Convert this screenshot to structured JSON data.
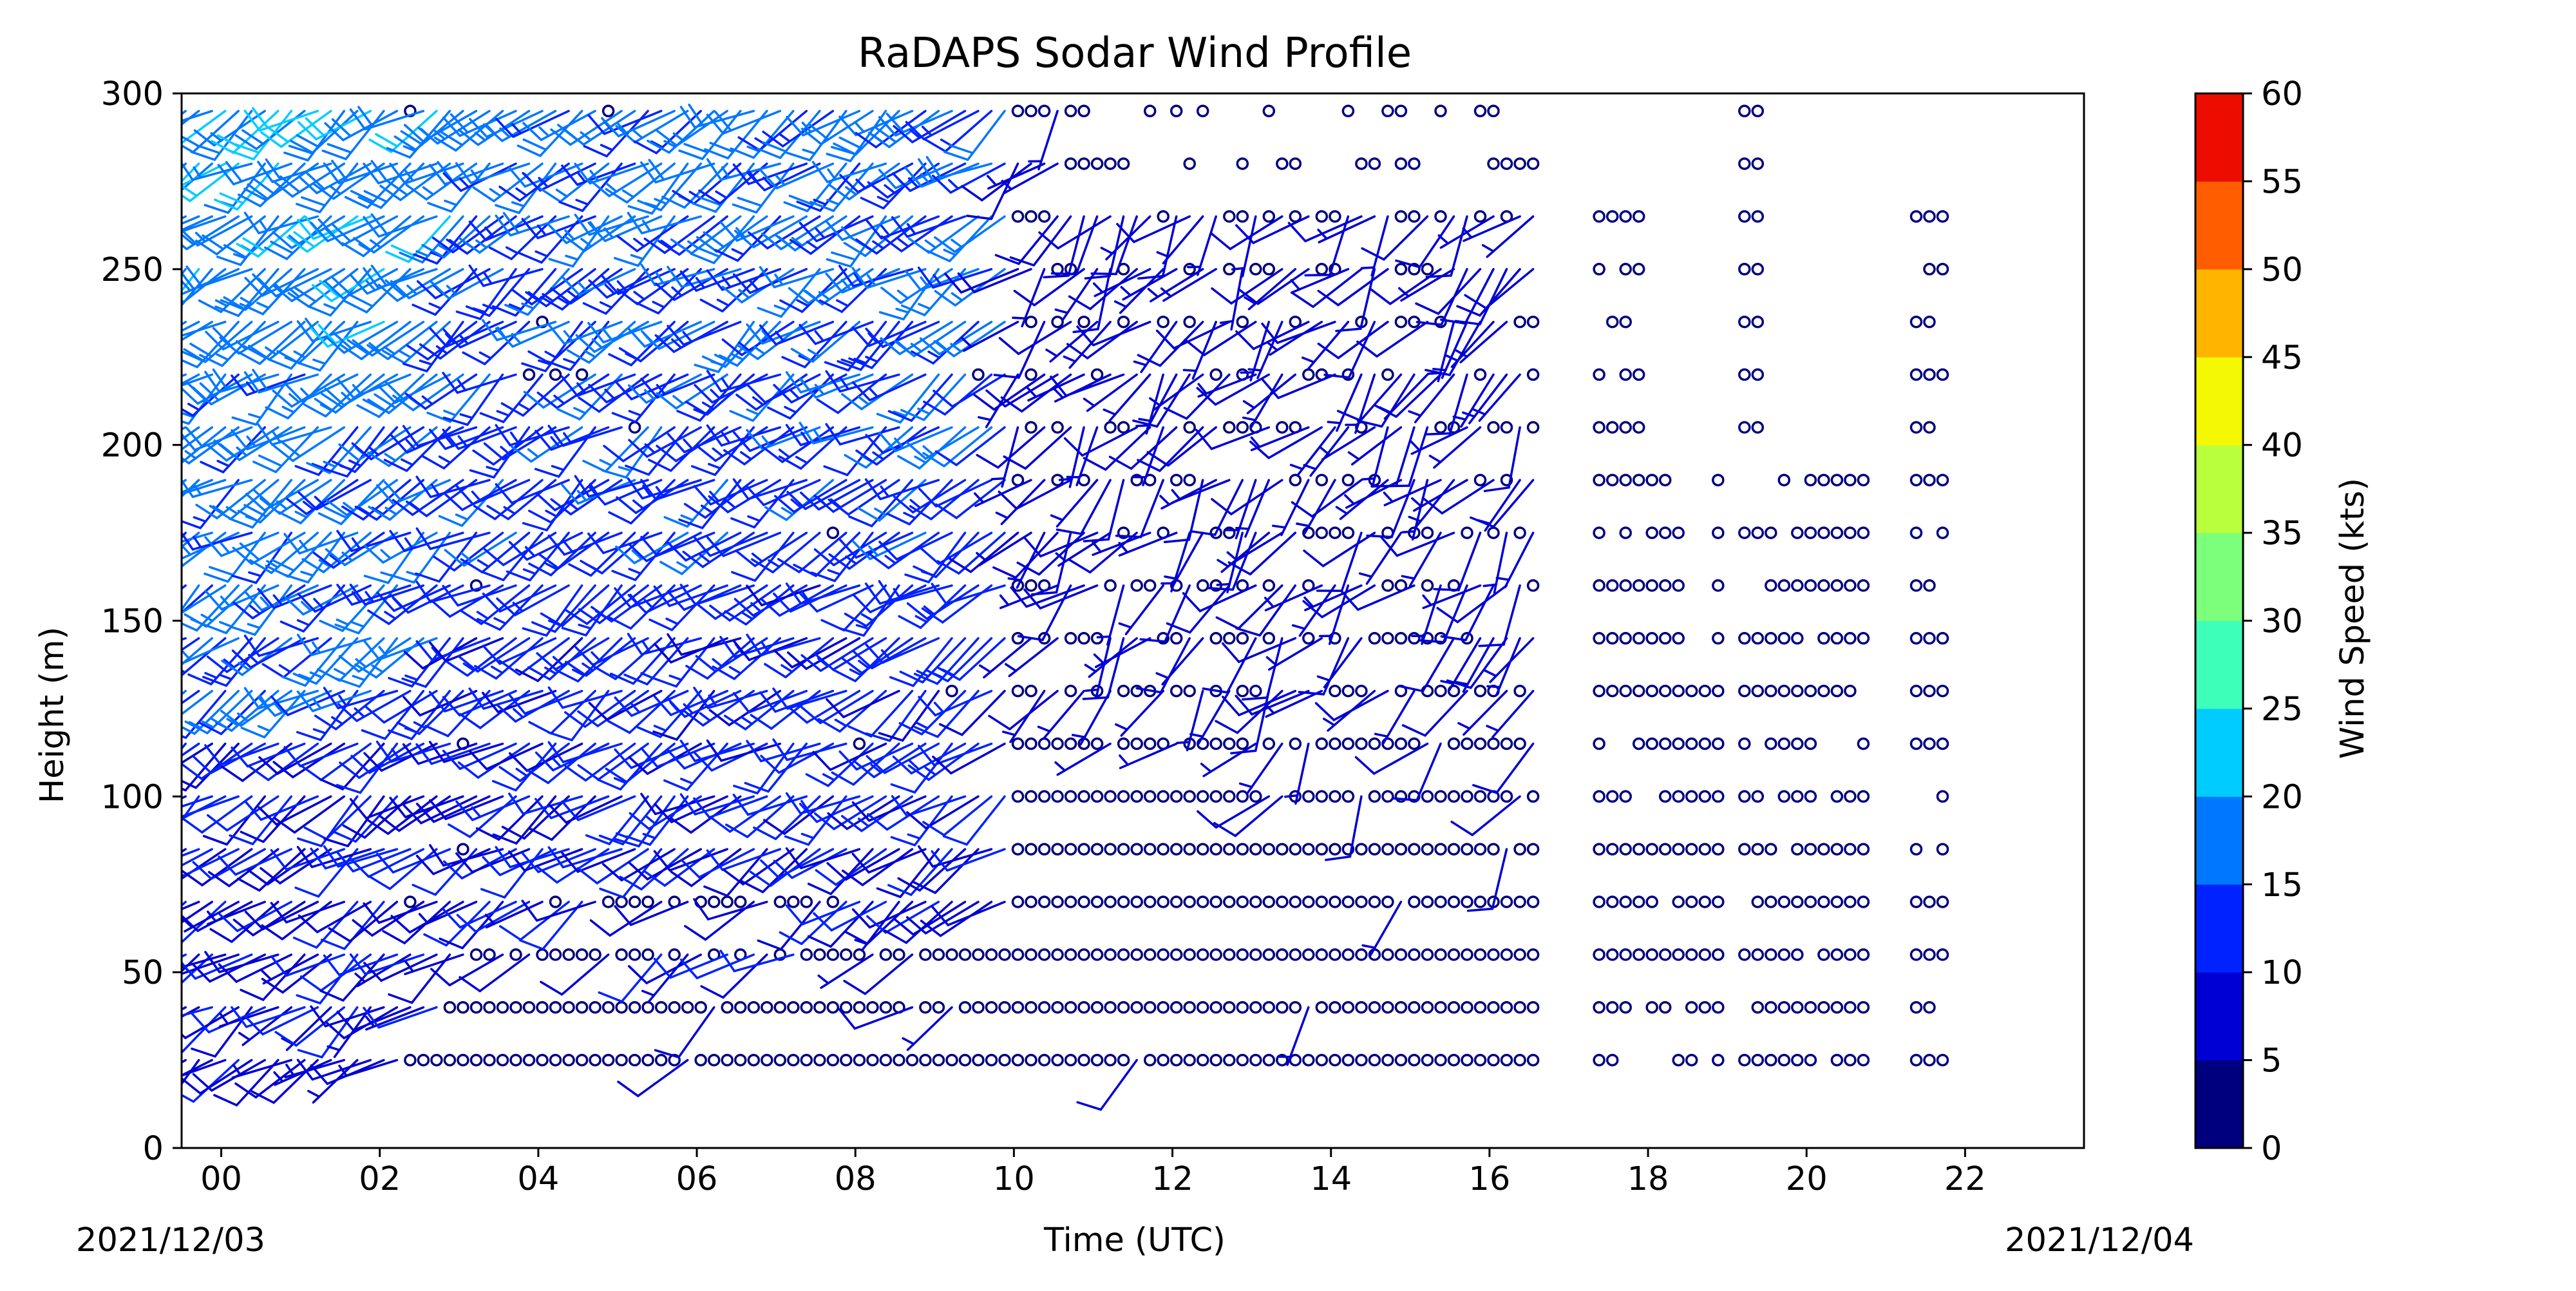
{
  "chart_data": {
    "type": "wind_barbs",
    "title": "RaDAPS Sodar Wind Profile",
    "xlabel": "Time (UTC)",
    "ylabel": "Height (m)",
    "date_start_label": "2021/12/03",
    "date_end_label": "2021/12/04",
    "x_range_hours": [
      -0.5,
      23.5
    ],
    "x_ticks": [
      "00",
      "02",
      "04",
      "06",
      "08",
      "10",
      "12",
      "14",
      "16",
      "18",
      "20",
      "22"
    ],
    "x_tick_hours": [
      0,
      2,
      4,
      6,
      8,
      10,
      12,
      14,
      16,
      18,
      20,
      22
    ],
    "ylim": [
      0,
      300
    ],
    "y_ticks": [
      0,
      50,
      100,
      150,
      200,
      250,
      300
    ],
    "heights_m": [
      25,
      40,
      55,
      70,
      85,
      100,
      115,
      130,
      145,
      160,
      175,
      190,
      205,
      220,
      235,
      250,
      265,
      280,
      295
    ],
    "time_step_minutes": 10,
    "calm_marker": "circle",
    "barb_color_scale": "jet",
    "colorbar": {
      "label": "Wind Speed (kts)",
      "ticks": [
        0,
        5,
        10,
        15,
        20,
        25,
        30,
        35,
        40,
        45,
        50,
        55,
        60
      ],
      "colors": [
        "#00007f",
        "#0000d4",
        "#0022ff",
        "#0077ff",
        "#00ccff",
        "#3dffba",
        "#7cff7a",
        "#baff3c",
        "#f4f802",
        "#ffb400",
        "#ff5d00",
        "#ec0d00",
        "#7f0000"
      ]
    },
    "approx_segments": {
      "0-10h": "barbs from the SSW to WSW at roughly 8-20 kts; mostly calm (circles) at 25-70 m after about 02-03 h",
      "10-16h": "mostly calm (circles) below about 100 m; scattered 5-10 kt barbs aloft",
      "16-22h": "mostly calm (circles) at all heights, with data gaps"
    }
  }
}
